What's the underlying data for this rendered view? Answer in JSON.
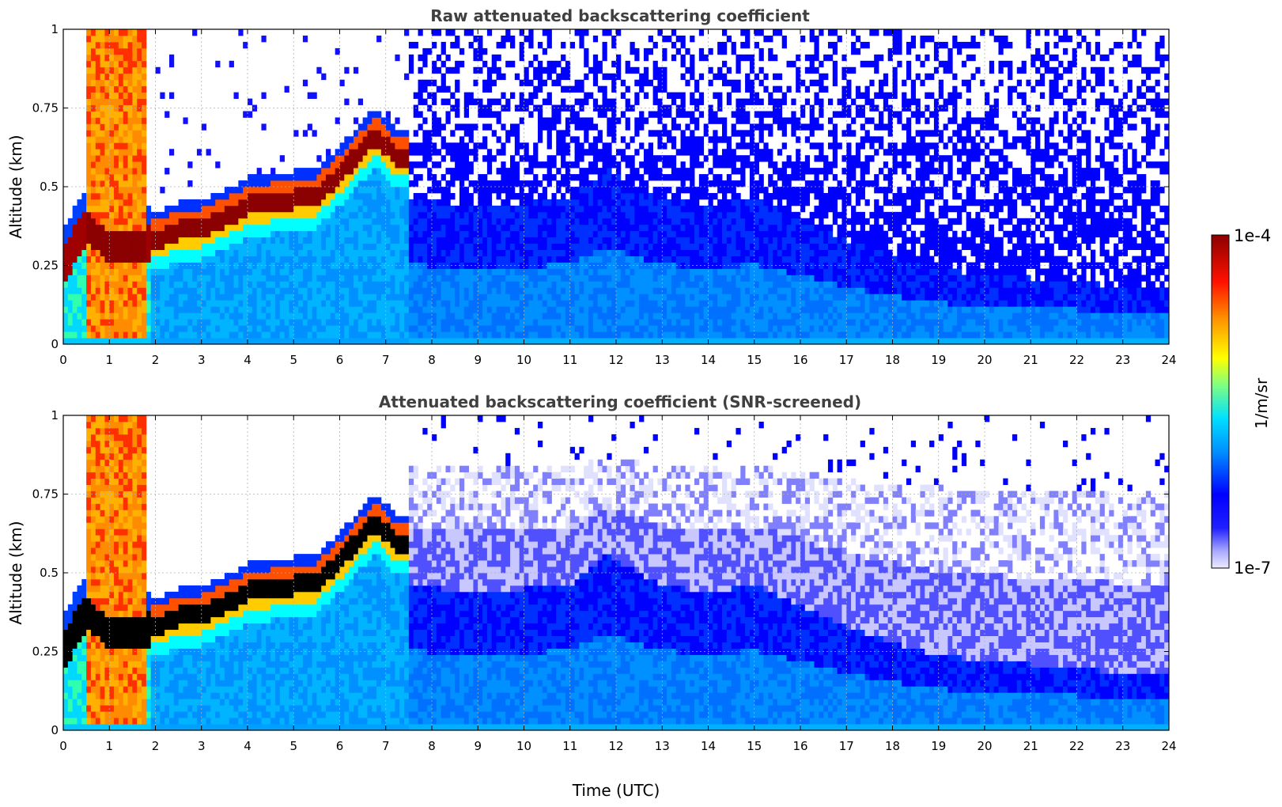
{
  "chart_data": [
    {
      "type": "heatmap",
      "title": "Raw attenuated backscattering coefficient",
      "xlabel": "",
      "ylabel": "Altitude (km)",
      "xlim": [
        0,
        24
      ],
      "ylim": [
        0,
        1
      ],
      "xticks": [
        "0",
        "1",
        "2",
        "3",
        "4",
        "5",
        "6",
        "7",
        "8",
        "9",
        "10",
        "11",
        "12",
        "13",
        "14",
        "15",
        "16",
        "17",
        "18",
        "19",
        "20",
        "21",
        "22",
        "23",
        "24"
      ],
      "yticks": [
        "0",
        "0.25",
        "0.5",
        "0.75",
        "1"
      ],
      "grid": true,
      "screened": false,
      "layer_top_km": [
        [
          0,
          0.25
        ],
        [
          0.5,
          0.38
        ],
        [
          1,
          0.3
        ],
        [
          1.5,
          0.32
        ],
        [
          2,
          0.31
        ],
        [
          2.5,
          0.34
        ],
        [
          3,
          0.35
        ],
        [
          3.5,
          0.38
        ],
        [
          4,
          0.42
        ],
        [
          5,
          0.44
        ],
        [
          5.5,
          0.45
        ],
        [
          6,
          0.52
        ],
        [
          6.5,
          0.6
        ],
        [
          6.8,
          0.64
        ],
        [
          7.2,
          0.58
        ],
        [
          7.5,
          0.58
        ]
      ],
      "boundary_layer_top_km": [
        [
          7.5,
          0.46
        ],
        [
          9,
          0.44
        ],
        [
          11,
          0.46
        ],
        [
          11.8,
          0.56
        ],
        [
          12.5,
          0.5
        ],
        [
          13,
          0.46
        ],
        [
          14,
          0.44
        ],
        [
          15,
          0.46
        ],
        [
          16,
          0.4
        ],
        [
          17,
          0.33
        ],
        [
          18,
          0.28
        ],
        [
          19,
          0.24
        ],
        [
          20,
          0.22
        ],
        [
          21,
          0.21
        ],
        [
          22,
          0.2
        ],
        [
          23,
          0.18
        ],
        [
          24,
          0.17
        ]
      ]
    },
    {
      "type": "heatmap",
      "title": "Attenuated backscattering coefficient (SNR-screened)",
      "xlabel": "Time (UTC)",
      "ylabel": "Altitude (km)",
      "xlim": [
        0,
        24
      ],
      "ylim": [
        0,
        1
      ],
      "xticks": [
        "0",
        "1",
        "2",
        "3",
        "4",
        "5",
        "6",
        "7",
        "8",
        "9",
        "10",
        "11",
        "12",
        "13",
        "14",
        "15",
        "16",
        "17",
        "18",
        "19",
        "20",
        "21",
        "22",
        "23",
        "24"
      ],
      "yticks": [
        "0",
        "0.25",
        "0.5",
        "0.75",
        "1"
      ],
      "grid": true,
      "screened": true,
      "layer_top_km": [
        [
          0,
          0.25
        ],
        [
          0.5,
          0.38
        ],
        [
          1,
          0.3
        ],
        [
          1.5,
          0.32
        ],
        [
          2,
          0.31
        ],
        [
          2.5,
          0.34
        ],
        [
          3,
          0.35
        ],
        [
          3.5,
          0.38
        ],
        [
          4,
          0.42
        ],
        [
          5,
          0.44
        ],
        [
          5.5,
          0.45
        ],
        [
          6,
          0.52
        ],
        [
          6.5,
          0.6
        ],
        [
          6.8,
          0.64
        ],
        [
          7.2,
          0.58
        ],
        [
          7.5,
          0.58
        ]
      ],
      "boundary_layer_top_km": [
        [
          7.5,
          0.46
        ],
        [
          9,
          0.44
        ],
        [
          11,
          0.46
        ],
        [
          11.8,
          0.56
        ],
        [
          12.5,
          0.5
        ],
        [
          13,
          0.46
        ],
        [
          14,
          0.44
        ],
        [
          15,
          0.46
        ],
        [
          16,
          0.4
        ],
        [
          17,
          0.33
        ],
        [
          18,
          0.28
        ],
        [
          19,
          0.24
        ],
        [
          20,
          0.22
        ],
        [
          21,
          0.21
        ],
        [
          22,
          0.2
        ],
        [
          23,
          0.18
        ],
        [
          24,
          0.17
        ]
      ]
    }
  ],
  "colorbar": {
    "label": "1/m/sr",
    "min_label": "1e-7",
    "max_label": "1e-4",
    "scale": "log",
    "colors": [
      "#e8e8ff",
      "#9a9aff",
      "#0000ff",
      "#00b4ff",
      "#00ffff",
      "#ffff00",
      "#ff8c00",
      "#ff0000",
      "#8b0000"
    ]
  }
}
